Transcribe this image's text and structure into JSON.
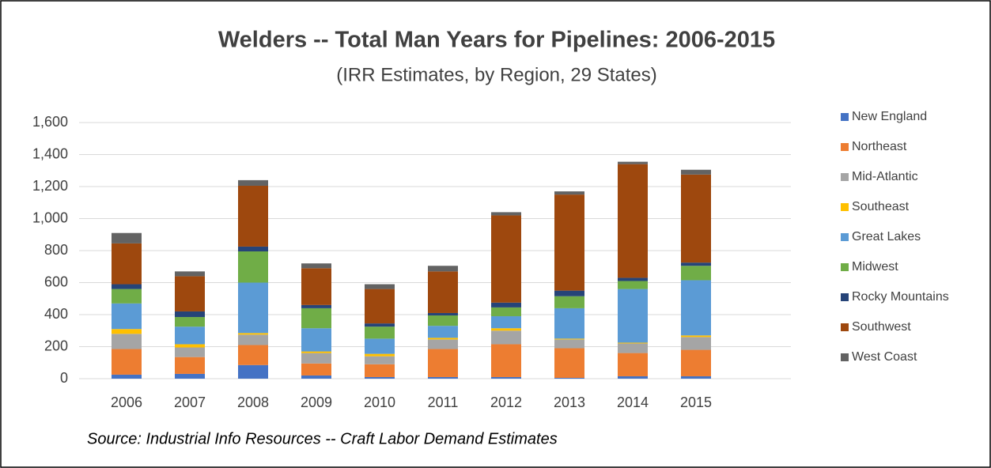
{
  "chart_data": {
    "type": "stacked_bar",
    "title": "Welders -- Total Man Years for Pipelines: 2006-2015",
    "subtitle": "(IRR Estimates, by Region, 29 States)",
    "source": "Source: Industrial Info Resources -- Craft Labor Demand Estimates",
    "categories": [
      "2006",
      "2007",
      "2008",
      "2009",
      "2010",
      "2011",
      "2012",
      "2013",
      "2014",
      "2015"
    ],
    "series": [
      {
        "name": "New England",
        "color": "#4472c4",
        "values": [
          25,
          30,
          85,
          20,
          10,
          10,
          10,
          5,
          15,
          15
        ]
      },
      {
        "name": "Northeast",
        "color": "#ed7d31",
        "values": [
          160,
          105,
          125,
          75,
          80,
          175,
          205,
          185,
          145,
          165
        ]
      },
      {
        "name": "Mid-Atlantic",
        "color": "#a5a5a5",
        "values": [
          95,
          60,
          65,
          65,
          50,
          60,
          85,
          55,
          60,
          80
        ]
      },
      {
        "name": "Southeast",
        "color": "#ffc000",
        "values": [
          30,
          20,
          10,
          10,
          15,
          10,
          15,
          5,
          5,
          10
        ]
      },
      {
        "name": "Great Lakes",
        "color": "#5b9bd5",
        "values": [
          160,
          110,
          315,
          145,
          95,
          75,
          75,
          190,
          335,
          345
        ]
      },
      {
        "name": "Midwest",
        "color": "#70ad47",
        "values": [
          90,
          60,
          195,
          125,
          75,
          65,
          55,
          75,
          50,
          90
        ]
      },
      {
        "name": "Rocky Mountains",
        "color": "#264478",
        "values": [
          30,
          35,
          30,
          20,
          20,
          15,
          30,
          35,
          20,
          20
        ]
      },
      {
        "name": "Southwest",
        "color": "#9e480e",
        "values": [
          255,
          220,
          380,
          230,
          215,
          260,
          545,
          600,
          710,
          550
        ]
      },
      {
        "name": "West Coast",
        "color": "#636363",
        "values": [
          65,
          30,
          35,
          30,
          30,
          35,
          20,
          20,
          15,
          30
        ]
      }
    ],
    "ylim": [
      0,
      1600
    ],
    "yticks": [
      0,
      200,
      400,
      600,
      800,
      {
        "value": 1000,
        "label": "1,000"
      },
      {
        "value": 1200,
        "label": "1,200"
      },
      {
        "value": 1400,
        "label": "1,400"
      },
      {
        "value": 1600,
        "label": "1,600"
      }
    ],
    "grid": true,
    "legend": "right"
  }
}
